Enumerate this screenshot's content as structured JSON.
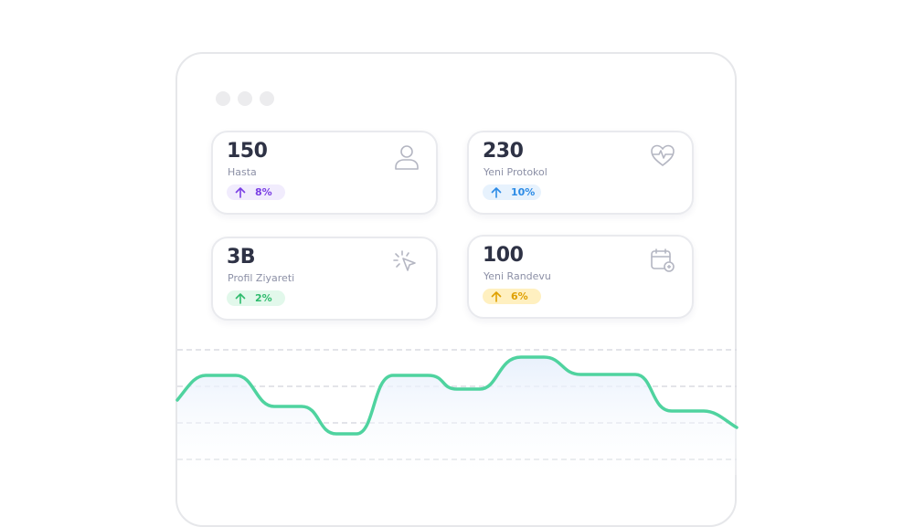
{
  "cards": [
    {
      "value": "150",
      "label": "Hasta",
      "change": "8%"
    },
    {
      "value": "230",
      "label": "Yeni Protokol",
      "change": "10%"
    },
    {
      "value": "3B",
      "label": "Profil Ziyareti",
      "change": "2%"
    },
    {
      "value": "100",
      "label": "Yeni Randevu",
      "change": "6%"
    }
  ]
}
